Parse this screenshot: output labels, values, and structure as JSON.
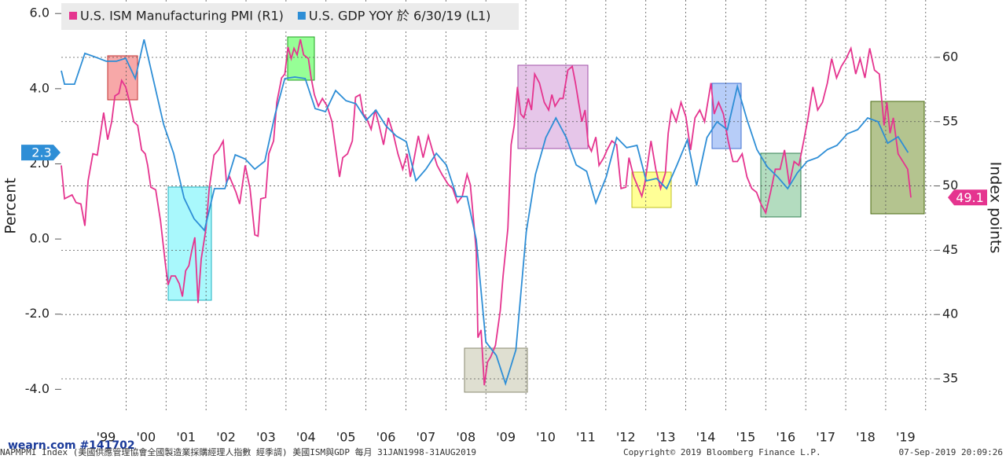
{
  "chart_data": {
    "type": "line",
    "legend": "top-left",
    "y_label": "Percent",
    "y2_label": "Index points",
    "xlim": [
      1998.38,
      2020.24
    ],
    "ylim": [
      -4.62,
      6.36
    ],
    "y2lim": [
      32.37,
      64.46
    ],
    "yticks": [
      {
        "value": 6,
        "label": "6.0"
      },
      {
        "value": 4,
        "label": "4.0"
      },
      {
        "value": 2,
        "label": "2.0"
      },
      {
        "value": 0,
        "label": "0.0"
      },
      {
        "value": -2,
        "label": "-2.0"
      },
      {
        "value": -4,
        "label": "-4.0"
      }
    ],
    "y2ticks": [
      35,
      40,
      45,
      50,
      55,
      60
    ],
    "xticks": [
      {
        "value": 1999.5,
        "label": "'99"
      },
      {
        "value": 2000.5,
        "label": "'00"
      },
      {
        "value": 2001.5,
        "label": "'01"
      },
      {
        "value": 2002.5,
        "label": "'02"
      },
      {
        "value": 2003.5,
        "label": "'03"
      },
      {
        "value": 2004.5,
        "label": "'04"
      },
      {
        "value": 2005.5,
        "label": "'05"
      },
      {
        "value": 2006.5,
        "label": "'06"
      },
      {
        "value": 2007.5,
        "label": "'07"
      },
      {
        "value": 2008.5,
        "label": "'08"
      },
      {
        "value": 2009.5,
        "label": "'09"
      },
      {
        "value": 2010.5,
        "label": "'10"
      },
      {
        "value": 2011.5,
        "label": "'11"
      },
      {
        "value": 2012.5,
        "label": "'12"
      },
      {
        "value": 2013.5,
        "label": "'13"
      },
      {
        "value": 2014.5,
        "label": "'14"
      },
      {
        "value": 2015.5,
        "label": "'15"
      },
      {
        "value": 2016.5,
        "label": "'16"
      },
      {
        "value": 2017.5,
        "label": "'17"
      },
      {
        "value": 2018.5,
        "label": "'18"
      },
      {
        "value": 2019.5,
        "label": "'19"
      }
    ],
    "xgrid": [
      2000,
      2001,
      2002,
      2003,
      2004,
      2005,
      2006,
      2007,
      2008,
      2009,
      2010,
      2011,
      2012,
      2013,
      2014,
      2015,
      2016,
      2017,
      2018,
      2019,
      2020
    ],
    "grid": true,
    "series": [
      {
        "name": "U.S. ISM Manufacturing PMI (R1)",
        "color": "#e5348f",
        "axis": "y2",
        "x": [
          1998.38,
          1998.46,
          1998.65,
          1998.75,
          1998.87,
          1998.97,
          1999.05,
          1999.17,
          1999.28,
          1999.44,
          1999.54,
          1999.64,
          1999.72,
          1999.82,
          1999.89,
          1999.99,
          2000.09,
          2000.19,
          2000.29,
          2000.39,
          2000.48,
          2000.54,
          2000.62,
          2000.74,
          2000.86,
          2000.98,
          2001.05,
          2001.13,
          2001.23,
          2001.33,
          2001.41,
          2001.49,
          2001.57,
          2001.64,
          2001.72,
          2001.8,
          2001.88,
          2002.0,
          2002.08,
          2002.2,
          2002.31,
          2002.43,
          2002.51,
          2002.59,
          2002.75,
          2002.84,
          2002.98,
          2003.1,
          2003.22,
          2003.3,
          2003.37,
          2003.49,
          2003.57,
          2003.69,
          2003.77,
          2003.89,
          2003.97,
          2004.05,
          2004.13,
          2004.2,
          2004.28,
          2004.36,
          2004.44,
          2004.56,
          2004.63,
          2004.71,
          2004.81,
          2004.91,
          2005.03,
          2005.15,
          2005.26,
          2005.34,
          2005.42,
          2005.54,
          2005.66,
          2005.74,
          2005.85,
          2005.93,
          2006.01,
          2006.13,
          2006.23,
          2006.33,
          2006.44,
          2006.56,
          2006.68,
          2006.8,
          2006.92,
          2007.03,
          2007.11,
          2007.19,
          2007.31,
          2007.43,
          2007.56,
          2007.66,
          2007.78,
          2007.9,
          2008.06,
          2008.17,
          2008.29,
          2008.41,
          2008.53,
          2008.61,
          2008.68,
          2008.76,
          2008.8,
          2008.88,
          2008.96,
          2009.04,
          2009.12,
          2009.24,
          2009.36,
          2009.43,
          2009.55,
          2009.63,
          2009.71,
          2009.79,
          2009.87,
          2009.95,
          2010.06,
          2010.14,
          2010.22,
          2010.34,
          2010.46,
          2010.57,
          2010.65,
          2010.73,
          2010.85,
          2010.93,
          2011.05,
          2011.16,
          2011.24,
          2011.32,
          2011.4,
          2011.48,
          2011.56,
          2011.64,
          2011.75,
          2011.83,
          2011.95,
          2012.03,
          2012.15,
          2012.27,
          2012.38,
          2012.5,
          2012.58,
          2012.7,
          2012.78,
          2012.9,
          2012.97,
          2013.13,
          2013.25,
          2013.37,
          2013.49,
          2013.56,
          2013.64,
          2013.76,
          2013.88,
          2014.0,
          2014.12,
          2014.23,
          2014.35,
          2014.47,
          2014.63,
          2014.71,
          2014.82,
          2014.94,
          2015.06,
          2015.18,
          2015.29,
          2015.41,
          2015.53,
          2015.65,
          2015.77,
          2015.88,
          2016.0,
          2016.12,
          2016.24,
          2016.36,
          2016.47,
          2016.59,
          2016.71,
          2016.83,
          2016.95,
          2017.06,
          2017.18,
          2017.3,
          2017.42,
          2017.54,
          2017.65,
          2017.77,
          2017.89,
          2018.01,
          2018.13,
          2018.25,
          2018.36,
          2018.48,
          2018.6,
          2018.72,
          2018.84,
          2018.96,
          2019.03,
          2019.11,
          2019.19,
          2019.31,
          2019.43,
          2019.55,
          2019.63
        ],
        "values": [
          51.6,
          49.0,
          49.3,
          48.7,
          48.6,
          46.9,
          50.4,
          52.5,
          52.4,
          55.7,
          53.6,
          55.0,
          57.0,
          57.2,
          58.2,
          57.7,
          56.5,
          55.0,
          54.7,
          52.8,
          52.5,
          51.6,
          49.9,
          49.7,
          47.3,
          44.0,
          42.3,
          43.0,
          43.0,
          42.4,
          41.4,
          43.4,
          43.8,
          44.9,
          46.0,
          40.9,
          44.3,
          46.7,
          49.8,
          52.4,
          52.8,
          53.5,
          50.3,
          50.7,
          49.5,
          48.6,
          51.6,
          49.8,
          46.2,
          46.1,
          49.0,
          49.1,
          52.5,
          53.5,
          56.5,
          58.4,
          58.7,
          60.8,
          59.9,
          60.7,
          60.2,
          61.4,
          60.2,
          59.9,
          58.4,
          57.1,
          56.2,
          56.8,
          56.2,
          55.0,
          52.5,
          50.7,
          52.2,
          52.5,
          53.5,
          56.9,
          57.1,
          55.6,
          55.3,
          54.4,
          55.9,
          54.7,
          53.2,
          55.3,
          54.1,
          52.5,
          51.3,
          52.5,
          50.7,
          51.9,
          53.9,
          52.2,
          53.9,
          52.8,
          51.6,
          50.9,
          50.1,
          49.8,
          48.7,
          49.2,
          50.9,
          50.1,
          47.7,
          44.9,
          38.2,
          38.8,
          34.5,
          36.3,
          36.7,
          37.6,
          40.3,
          43.0,
          46.7,
          53.2,
          54.7,
          57.7,
          55.6,
          55.3,
          56.8,
          55.9,
          58.7,
          58.0,
          56.5,
          55.9,
          57.1,
          56.2,
          56.8,
          56.8,
          59.0,
          59.3,
          58.0,
          56.5,
          55.0,
          55.9,
          53.2,
          52.7,
          53.8,
          51.6,
          52.2,
          52.8,
          53.5,
          53.2,
          49.8,
          49.9,
          52.2,
          50.7,
          50.1,
          49.2,
          50.1,
          53.5,
          51.3,
          49.8,
          51.0,
          54.1,
          55.9,
          55.0,
          56.5,
          55.4,
          52.8,
          55.3,
          55.9,
          55.0,
          58.0,
          55.6,
          56.5,
          55.6,
          53.5,
          51.9,
          51.9,
          52.5,
          50.7,
          49.8,
          49.5,
          48.6,
          47.9,
          49.5,
          51.3,
          51.3,
          52.8,
          50.1,
          51.9,
          51.6,
          53.5,
          55.3,
          57.7,
          55.9,
          56.5,
          58.0,
          59.9,
          58.4,
          59.3,
          59.9,
          60.7,
          58.7,
          59.9,
          58.4,
          60.7,
          59.0,
          58.7,
          54.7,
          56.5,
          54.1,
          55.3,
          52.5,
          51.9,
          51.3,
          49.1
        ]
      },
      {
        "name": "U.S. GDP YOY 於 6/30/19 (L1)",
        "color": "#2e8ed6",
        "axis": "y",
        "x": [
          1998.38,
          1998.46,
          1998.71,
          1998.97,
          1999.21,
          1999.5,
          1999.76,
          1999.99,
          2000.23,
          2000.45,
          2000.7,
          2000.94,
          2001.19,
          2001.45,
          2001.7,
          2001.96,
          2002.21,
          2002.47,
          2002.73,
          2002.98,
          2003.22,
          2003.47,
          2003.73,
          2003.97,
          2004.22,
          2004.48,
          2004.73,
          2004.99,
          2005.24,
          2005.5,
          2005.75,
          2006.01,
          2006.25,
          2006.5,
          2006.76,
          2007.01,
          2007.25,
          2007.5,
          2007.76,
          2008.01,
          2008.27,
          2008.53,
          2008.76,
          2009.0,
          2009.26,
          2009.49,
          2009.75,
          2010.01,
          2010.24,
          2010.5,
          2010.75,
          2011.01,
          2011.26,
          2011.52,
          2011.75,
          2012.01,
          2012.27,
          2012.52,
          2012.78,
          2013.01,
          2013.27,
          2013.52,
          2013.78,
          2014.04,
          2014.27,
          2014.53,
          2014.78,
          2015.04,
          2015.29,
          2015.53,
          2015.78,
          2016.04,
          2016.3,
          2016.55,
          2016.79,
          2017.04,
          2017.3,
          2017.54,
          2017.78,
          2018.04,
          2018.3,
          2018.55,
          2018.81,
          2019.05,
          2019.31,
          2019.56
        ],
        "values": [
          4.48,
          4.12,
          4.12,
          4.94,
          4.85,
          4.73,
          4.73,
          4.81,
          4.27,
          5.31,
          4.16,
          3.05,
          2.28,
          1.09,
          0.54,
          0.23,
          1.34,
          1.34,
          2.24,
          2.13,
          1.86,
          2.07,
          3.33,
          4.27,
          4.31,
          4.27,
          3.47,
          3.39,
          3.95,
          3.68,
          3.6,
          3.16,
          3.43,
          3.01,
          2.74,
          2.59,
          1.55,
          1.86,
          2.28,
          1.97,
          1.13,
          1.13,
          -0.02,
          -2.74,
          -3.1,
          -3.85,
          -2.95,
          0.19,
          1.72,
          2.7,
          3.22,
          2.7,
          1.97,
          1.8,
          0.96,
          1.65,
          2.7,
          2.43,
          2.49,
          1.55,
          1.61,
          1.34,
          1.97,
          2.64,
          1.42,
          2.7,
          3.12,
          2.91,
          4.06,
          3.18,
          2.38,
          1.92,
          1.65,
          1.34,
          1.76,
          2.07,
          2.17,
          2.38,
          2.49,
          2.8,
          2.91,
          3.22,
          3.12,
          2.55,
          2.72,
          2.3
        ]
      }
    ]
  },
  "footer": {
    "watermark": "wearn.com #141702",
    "source": "NAPMPMI Index (美國供應管理協會全國製造業採購經理人指數 經季調) 美國ISM與GDP  每月 31JAN1998-31AUG2019",
    "copyright": "Copyright© 2019 Bloomberg Finance L.P.",
    "timestamp": "07-Sep-2019 20:09:26"
  }
}
